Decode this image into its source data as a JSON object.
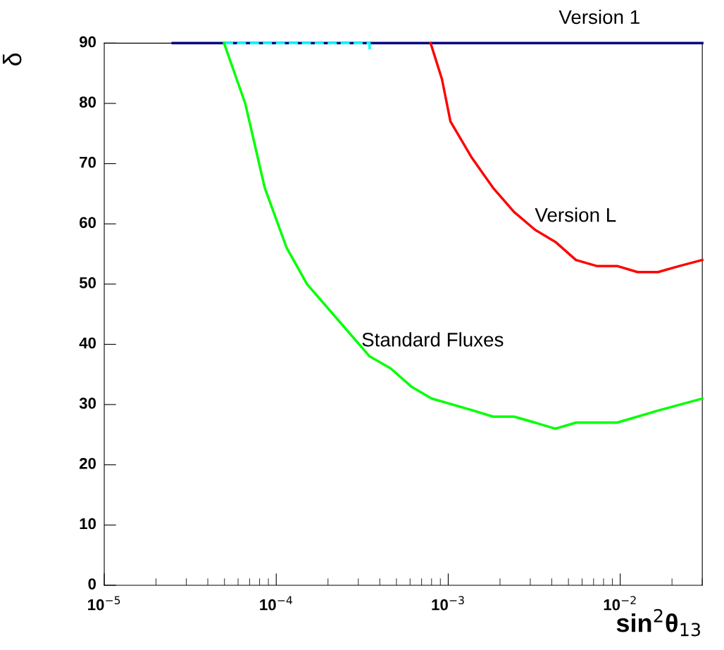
{
  "chart_data": {
    "type": "line",
    "xlabel": "sin$^{2}$θ$_{13}$",
    "ylabel": "δ",
    "log": "x",
    "grid": false,
    "line_style": "solid",
    "marker": "none",
    "xlim": [
      1e-05,
      0.03
    ],
    "ylim": [
      0,
      90
    ],
    "xticks": [
      {
        "value": 1e-05,
        "label": "10$^{−5}$"
      },
      {
        "value": 0.0001,
        "label": "10$^{−4}$"
      },
      {
        "value": 0.001,
        "label": "10$^{−3}$"
      },
      {
        "value": 0.01,
        "label": "10$^{−2}$"
      }
    ],
    "yticks": [
      0,
      10,
      20,
      30,
      40,
      50,
      60,
      70,
      80,
      90
    ],
    "series": [
      {
        "name": "Version 1",
        "color": "#000080",
        "x": [
          2.5e-05,
          0.03
        ],
        "values": [
          90,
          90
        ]
      },
      {
        "color": "#00ffff",
        "line_style": "dashed",
        "x": [
          4.97e-05,
          0.000349,
          0.000349
        ],
        "values": [
          90,
          90,
          88.8
        ]
      },
      {
        "name": "Version L",
        "color": "#ff0000",
        "x": [
          0.00079,
          0.00092,
          0.00103,
          0.00137,
          0.00182,
          0.00241,
          0.0032,
          0.0042,
          0.00553,
          0.0073,
          0.0096,
          0.0126,
          0.0166,
          0.0221,
          0.03
        ],
        "values": [
          90,
          84,
          77,
          71,
          66,
          62,
          59,
          57,
          54,
          53,
          53,
          52,
          52,
          53,
          54
        ]
      },
      {
        "name": "Standard Fluxes",
        "color": "#00ff00",
        "x": [
          4.97e-05,
          6.6e-05,
          8.57e-05,
          0.000115,
          0.000151,
          0.000349,
          0.000463,
          0.000609,
          0.0008,
          0.0014,
          0.00182,
          0.00241,
          0.0032,
          0.0042,
          0.00553,
          0.0096,
          0.0166,
          0.03
        ],
        "values": [
          90,
          80,
          66,
          56,
          50,
          38,
          36,
          33,
          31,
          29,
          28,
          28,
          27,
          26,
          27,
          27,
          29,
          31
        ]
      }
    ]
  }
}
